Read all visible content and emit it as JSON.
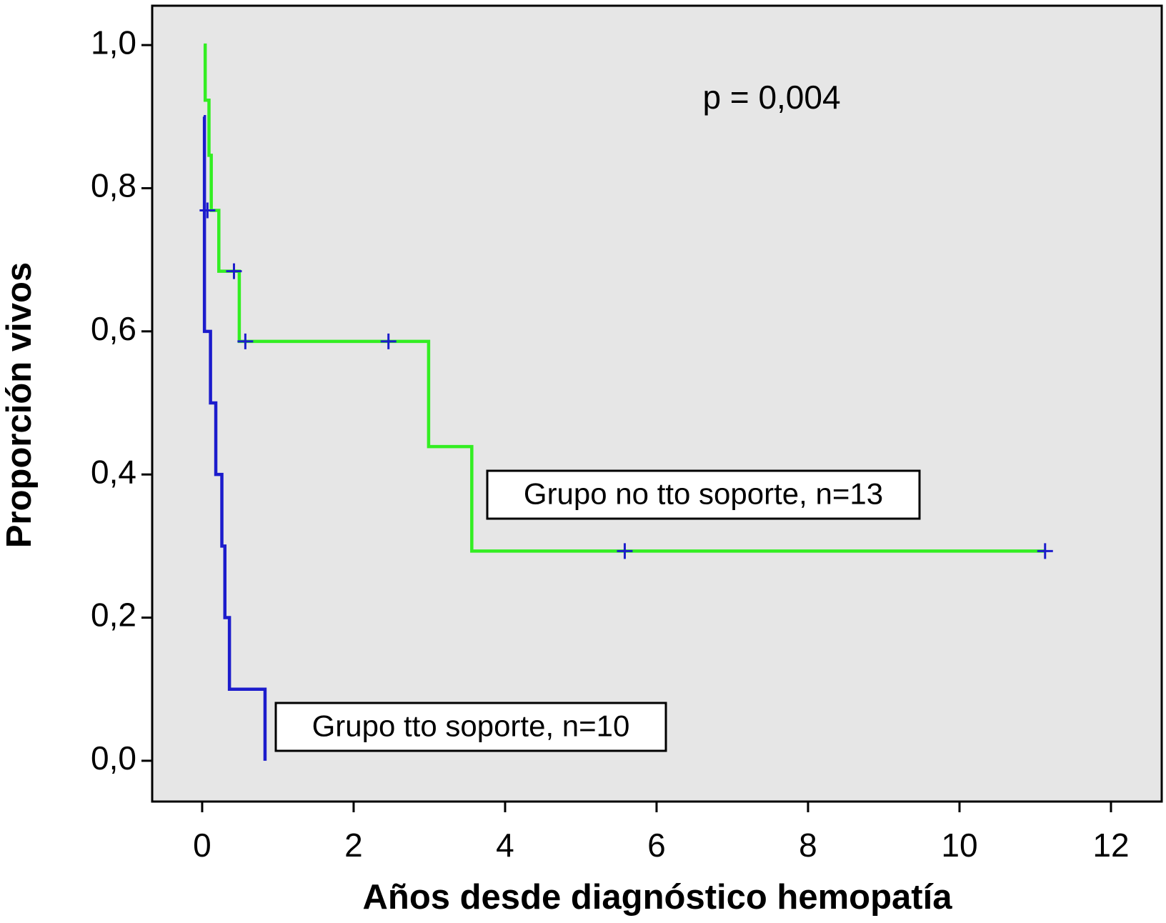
{
  "chart_data": {
    "type": "step",
    "annotation": "p = 0,004",
    "x_label": "Años desde diagnóstico hemopatía",
    "y_label": "Proporción vivos",
    "xlim": [
      -0.66,
      12.67
    ],
    "ylim": [
      -0.057,
      1.055
    ],
    "xticks": [
      0,
      2,
      4,
      6,
      8,
      10,
      12
    ],
    "yticks": [
      {
        "value": 0,
        "label": "0,0"
      },
      {
        "value": 0.2,
        "label": "0,2"
      },
      {
        "value": 0.4,
        "label": "0,4"
      },
      {
        "value": 0.6,
        "label": "0,6"
      },
      {
        "value": 0.8,
        "label": "0,8"
      },
      {
        "value": 1,
        "label": "1,0"
      }
    ],
    "background": "#e6e6e6",
    "censor_color": "#1c1ccc",
    "series": [
      {
        "name": "Grupo no tto soporte, n=13",
        "color": "#33ee22",
        "x": [
          0.02,
          0.04,
          0.09,
          0.12,
          0.22,
          0.49,
          2.99,
          3.56,
          11.13
        ],
        "values": [
          1.0,
          0.923,
          0.846,
          0.769,
          0.684,
          0.586,
          0.439,
          0.293,
          0.293
        ],
        "censored_x": [
          0.07,
          0.42,
          0.57,
          2.46,
          5.58,
          11.13
        ],
        "censored_values": [
          0.769,
          0.684,
          0.586,
          0.586,
          0.293,
          0.293
        ]
      },
      {
        "name": "Grupo tto soporte, n=10",
        "color": "#1c1ccc",
        "x": [
          0.02,
          0.03,
          0.11,
          0.18,
          0.26,
          0.3,
          0.36,
          0.83
        ],
        "values": [
          0.9,
          0.6,
          0.5,
          0.4,
          0.3,
          0.2,
          0.1,
          0.0
        ],
        "censored_x": [],
        "censored_values": []
      }
    ]
  }
}
